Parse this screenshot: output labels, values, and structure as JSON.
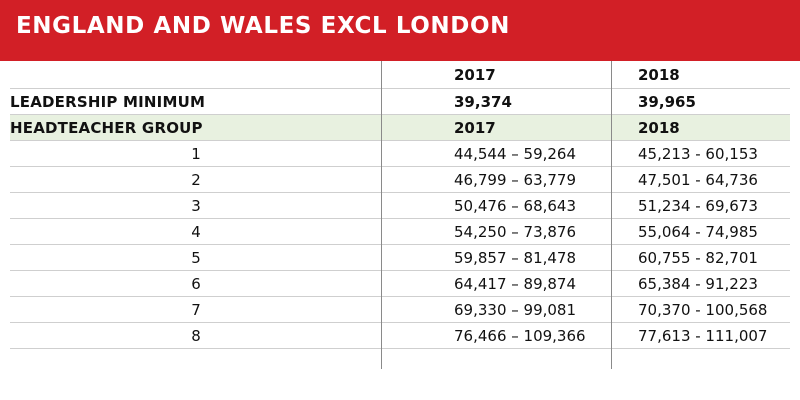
{
  "title": "ENGLAND AND WALES EXCL LONDON",
  "header": {
    "col_2017": "2017",
    "col_2018": "2018"
  },
  "leadership": {
    "label": "LEADERSHIP MINIMUM",
    "v2017": "39,374",
    "v2018": "39,965"
  },
  "group_header": {
    "label": "HEADTEACHER GROUP",
    "col_2017": "2017",
    "col_2018": "2018"
  },
  "rows": [
    {
      "group": "1",
      "v2017": "44,544 – 59,264",
      "v2018": "45,213 - 60,153"
    },
    {
      "group": "2",
      "v2017": "46,799 – 63,779",
      "v2018": "47,501 - 64,736"
    },
    {
      "group": "3",
      "v2017": "50,476 – 68,643",
      "v2018": "51,234 - 69,673"
    },
    {
      "group": "4",
      "v2017": "54,250 – 73,876",
      "v2018": "55,064 - 74,985"
    },
    {
      "group": "5",
      "v2017": "59,857 – 81,478",
      "v2018": "60,755 - 82,701"
    },
    {
      "group": "6",
      "v2017": "64,417 – 89,874",
      "v2018": "65,384 - 91,223"
    },
    {
      "group": "7",
      "v2017": "69,330 – 99,081",
      "v2018": "70,370 - 100,568"
    },
    {
      "group": "8",
      "v2017": "76,466 – 109,366",
      "v2018": "77,613 - 111,007"
    }
  ],
  "colors": {
    "title_bar": "#d21f26",
    "group_row_bg": "#e8f1e0"
  }
}
